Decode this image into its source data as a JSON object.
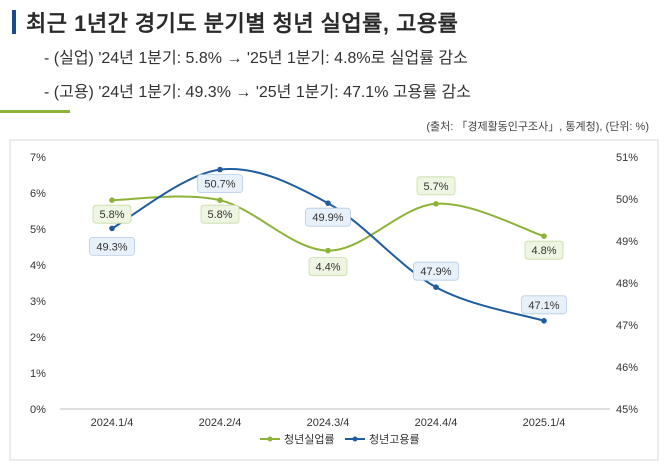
{
  "header": {
    "title": "최근 1년간 경기도 분기별 청년 실업률, 고용률",
    "bullet1": "- (실업) '24년 1분기: 5.8% → '25년 1분기: 4.8%로 실업률 감소",
    "bullet2": "- (고용) '24년 1분기: 49.3% → '25년 1분기: 47.1% 고용률 감소",
    "source": "(출처: 「경제활동인구조사」, 통계청), (단위: %)"
  },
  "colors": {
    "unemployment": "#8db33a",
    "employment": "#1f5da0",
    "title_bar": "#1a4b8c"
  },
  "chart_data": {
    "type": "line",
    "title": "",
    "categories": [
      "2024.1/4",
      "2024.2/4",
      "2024.3/4",
      "2024.4/4",
      "2025.1/4"
    ],
    "series": [
      {
        "name": "청년실업률",
        "axis": "left",
        "values": [
          5.8,
          5.8,
          4.4,
          5.7,
          4.8
        ],
        "labels": [
          "5.8%",
          "5.8%",
          "4.4%",
          "5.7%",
          "4.8%"
        ]
      },
      {
        "name": "청년고용률",
        "axis": "right",
        "values": [
          49.3,
          50.7,
          49.9,
          47.9,
          47.1
        ],
        "labels": [
          "49.3%",
          "50.7%",
          "49.9%",
          "47.9%",
          "47.1%"
        ]
      }
    ],
    "y_left": {
      "ylim": [
        0,
        7
      ],
      "ticks": [
        "0%",
        "1%",
        "2%",
        "3%",
        "4%",
        "5%",
        "6%",
        "7%"
      ]
    },
    "y_right": {
      "ylim": [
        45,
        51
      ],
      "ticks": [
        "45%",
        "46%",
        "47%",
        "48%",
        "49%",
        "50%",
        "51%"
      ]
    },
    "grid": false,
    "legend": "bottom"
  }
}
